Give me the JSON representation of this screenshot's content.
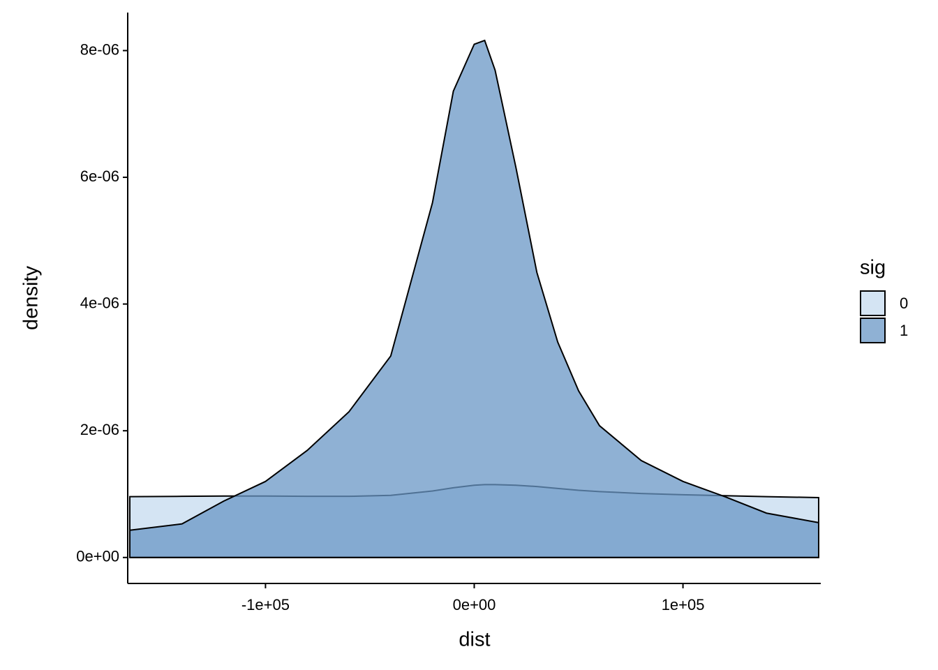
{
  "chart_data": {
    "type": "density",
    "x_label": "dist",
    "y_label": "density",
    "x": [
      -165000,
      -140000,
      -120000,
      -100000,
      -80000,
      -60000,
      -40000,
      -20000,
      -10000,
      0,
      5000,
      10000,
      20000,
      30000,
      40000,
      50000,
      60000,
      80000,
      100000,
      120000,
      140000,
      165000
    ],
    "series": [
      {
        "name": "0",
        "color": "#c6dbef",
        "values": [
          9.6e-07,
          9.65e-07,
          9.7e-07,
          9.7e-07,
          9.65e-07,
          9.65e-07,
          9.8e-07,
          1.05e-06,
          1.1e-06,
          1.14e-06,
          1.15e-06,
          1.15e-06,
          1.14e-06,
          1.12e-06,
          1.09e-06,
          1.06e-06,
          1.04e-06,
          1.01e-06,
          9.9e-07,
          9.75e-07,
          9.6e-07,
          9.45e-07
        ]
      },
      {
        "name": "1",
        "color": "#6a97c6",
        "values": [
          4.3e-07,
          5.3e-07,
          8.9e-07,
          1.2e-06,
          1.69e-06,
          2.3e-06,
          3.18e-06,
          5.6e-06,
          7.36e-06,
          8.1e-06,
          8.16e-06,
          7.69e-06,
          6.15e-06,
          4.5e-06,
          3.4e-06,
          2.63e-06,
          2.08e-06,
          1.53e-06,
          1.2e-06,
          9.6e-07,
          7e-07,
          5.5e-07
        ]
      }
    ],
    "opacity": 0.75,
    "legend_title": "sig",
    "legend_position": "right",
    "xlim": [
      -166000,
      166000
    ],
    "ylim": [
      -4.1e-07,
      8.6e-06
    ],
    "xticks": [
      {
        "value": -100000,
        "label": "-1e+05"
      },
      {
        "value": 0,
        "label": "0e+00"
      },
      {
        "value": 100000,
        "label": "1e+05"
      }
    ],
    "yticks": [
      {
        "value": 0,
        "label": "0e+00"
      },
      {
        "value": 2e-06,
        "label": "2e-06"
      },
      {
        "value": 4e-06,
        "label": "4e-06"
      },
      {
        "value": 6e-06,
        "label": "6e-06"
      },
      {
        "value": 8e-06,
        "label": "8e-06"
      }
    ],
    "grid": false
  }
}
